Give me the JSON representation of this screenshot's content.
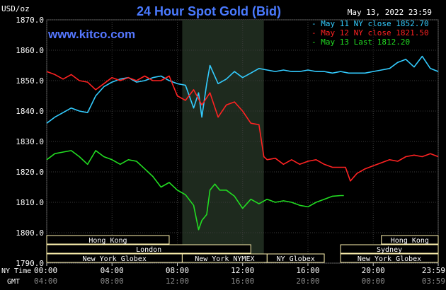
{
  "header": {
    "title": "24 Hour Spot Gold (Bid)",
    "unit": "USD/oz",
    "datetime": "May 13, 2022 23:59",
    "brand": "www.kitco.com"
  },
  "colors": {
    "background": "#000000",
    "plot_bg": "#000000",
    "shade": "#1e2a1e",
    "grid": "#3a3a3a",
    "axis_text": "#ffffff",
    "title": "#4a7aff",
    "brand": "#5577ff",
    "session_box": "#fff3b0",
    "session_text": "#ffffff"
  },
  "chart_data": {
    "type": "line",
    "title": "24 Hour Spot Gold (Bid)",
    "ylabel": "USD/oz",
    "ylim": [
      1790,
      1870
    ],
    "y_ticks": [
      "1870.0",
      "1860.0",
      "1850.0",
      "1840.0",
      "1830.0",
      "1820.0",
      "1810.0",
      "1800.0",
      "1790.0"
    ],
    "x_ticks_ny": [
      "00:00",
      "04:00",
      "08:00",
      "12:00",
      "16:00",
      "20:00",
      "23:59"
    ],
    "x_ticks_gmt": [
      "04:00",
      "08:00",
      "12:00",
      "16:00",
      "20:00",
      "00:00",
      "03:59"
    ],
    "x_row_labels": {
      "ny": "NY Time",
      "gmt": "GMT"
    },
    "legend": [
      {
        "label": "- May 11 NY close 1852.70",
        "color": "#33ccff"
      },
      {
        "label": "- May 12 NY close 1821.50",
        "color": "#ff2222"
      },
      {
        "label": "- May 13 Last 1812.20",
        "color": "#22dd22"
      }
    ],
    "shaded_hours": [
      8.3,
      13.3
    ],
    "series": [
      {
        "name": "May 11 NY close 1852.70",
        "color": "#33ccff",
        "x": [
          0,
          0.5,
          1,
          1.5,
          2,
          2.5,
          3,
          3.5,
          4,
          4.5,
          5,
          5.5,
          6,
          6.5,
          7,
          7.5,
          8,
          8.5,
          9,
          9.3,
          9.5,
          9.8,
          10,
          10.5,
          11,
          11.5,
          12,
          12.5,
          13,
          13.5,
          14,
          14.5,
          15,
          15.5,
          16,
          16.5,
          17,
          17.5,
          18,
          18.5,
          19,
          19.5,
          20,
          20.5,
          21,
          21.5,
          22,
          22.5,
          23,
          23.5,
          23.98
        ],
        "y": [
          1836,
          1838,
          1839.5,
          1841,
          1840,
          1839.5,
          1845,
          1848,
          1849.5,
          1850.5,
          1851,
          1849.5,
          1850,
          1851,
          1851.5,
          1850,
          1849,
          1848.5,
          1841,
          1846,
          1838,
          1849,
          1855,
          1849,
          1850.5,
          1853,
          1851,
          1852.5,
          1854,
          1853.5,
          1853,
          1853.5,
          1853,
          1853,
          1853.5,
          1853,
          1853,
          1852.5,
          1853,
          1852.5,
          1852.5,
          1852.5,
          1853,
          1853.5,
          1854,
          1856,
          1857,
          1854.5,
          1858,
          1854,
          1853
        ]
      },
      {
        "name": "May 12 NY close 1821.50",
        "color": "#ff2222",
        "x": [
          0,
          0.5,
          1,
          1.5,
          2,
          2.5,
          3,
          3.5,
          4,
          4.5,
          5,
          5.5,
          6,
          6.5,
          7,
          7.5,
          8,
          8.5,
          9,
          9.5,
          10,
          10.5,
          11,
          11.5,
          12,
          12.5,
          13,
          13.3,
          13.5,
          14,
          14.5,
          15,
          15.5,
          16,
          16.5,
          17,
          17.5,
          18,
          18.3,
          18.6,
          19,
          19.5,
          20,
          20.5,
          21,
          21.5,
          22,
          22.5,
          23,
          23.5,
          23.98
        ],
        "y": [
          1853,
          1852,
          1850.5,
          1852,
          1850,
          1849.5,
          1847,
          1849,
          1851,
          1850,
          1851,
          1850,
          1851.5,
          1850,
          1850,
          1851.5,
          1845,
          1843.5,
          1847,
          1842,
          1846,
          1838,
          1842,
          1843,
          1840,
          1836,
          1835.5,
          1825,
          1824,
          1824.5,
          1822.5,
          1824,
          1822.5,
          1823.5,
          1824,
          1822.5,
          1821.5,
          1821.5,
          1821.5,
          1817,
          1819.5,
          1821,
          1822,
          1823,
          1824,
          1823.5,
          1825,
          1825.5,
          1825,
          1826,
          1825
        ]
      },
      {
        "name": "May 13 Last 1812.20",
        "color": "#22dd22",
        "x": [
          0,
          0.5,
          1,
          1.5,
          2,
          2.5,
          3,
          3.5,
          4,
          4.5,
          5,
          5.5,
          6,
          6.5,
          7,
          7.5,
          8,
          8.5,
          9,
          9.3,
          9.5,
          9.8,
          10,
          10.3,
          10.6,
          11,
          11.5,
          12,
          12.5,
          13,
          13.5,
          14,
          14.5,
          15,
          15.5,
          16,
          16.5,
          17,
          17.5,
          18,
          18.2
        ],
        "y": [
          1824,
          1826,
          1826.5,
          1827,
          1825,
          1822.5,
          1827,
          1825,
          1824,
          1822.5,
          1824,
          1823.5,
          1821,
          1818.5,
          1815,
          1816.5,
          1814,
          1812.5,
          1809,
          1801,
          1804,
          1806,
          1814,
          1816,
          1814,
          1814,
          1812,
          1808,
          1811,
          1809.5,
          1811,
          1810,
          1810.5,
          1810,
          1809,
          1808.5,
          1810,
          1811,
          1812,
          1812.2,
          1812.2
        ]
      }
    ]
  },
  "sessions": {
    "row1": [
      {
        "label": "Hong Kong",
        "start": 0,
        "end": 7.5
      },
      {
        "label": "Hong Kong",
        "start": 20.5,
        "end": 23.98
      }
    ],
    "row2": [
      {
        "label": "London",
        "start": 0,
        "end": 12.5
      },
      {
        "label": "Sydney",
        "start": 18,
        "end": 23.98
      }
    ],
    "row3": [
      {
        "label": "New York Globex",
        "start": 0,
        "end": 8.3
      },
      {
        "label": "New York NYMEX",
        "start": 8.3,
        "end": 13.5
      },
      {
        "label": "NY Globex",
        "start": 13.5,
        "end": 17
      },
      {
        "label": "New York Globex",
        "start": 18,
        "end": 23.98
      }
    ]
  }
}
